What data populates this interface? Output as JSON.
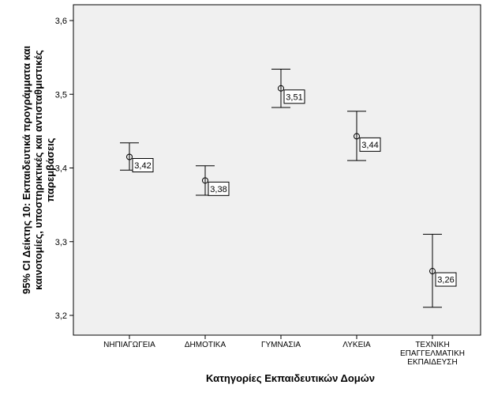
{
  "chart_data": {
    "type": "errorbar",
    "xlabel": "Κατηγορίες Εκπαιδευτικών Δομών",
    "ylabel": [
      "95% CI Δείκτης 10: Εκπαιδευτικά προγράμματα και",
      "καινοτομίες, υποστηρικτικές και αντισταθμιστικές",
      "παρεμβάσεις"
    ],
    "ylim": [
      3.2,
      3.6
    ],
    "yticks": [
      3.2,
      3.3,
      3.4,
      3.5,
      3.6
    ],
    "ytick_labels": [
      "3,2",
      "3,3",
      "3,4",
      "3,5",
      "3,6"
    ],
    "grid": false,
    "categories": [
      {
        "lines": [
          "ΝΗΠΙΑΓΩΓΕΙΑ"
        ],
        "mean": 3.415,
        "lower": 3.397,
        "upper": 3.434,
        "label": "3,42"
      },
      {
        "lines": [
          "ΔΗΜΟΤΙΚΑ"
        ],
        "mean": 3.383,
        "lower": 3.363,
        "upper": 3.403,
        "label": "3,38"
      },
      {
        "lines": [
          "ΓΥΜΝΑΣΙΑ"
        ],
        "mean": 3.508,
        "lower": 3.482,
        "upper": 3.534,
        "label": "3,51"
      },
      {
        "lines": [
          "ΛΥΚΕΙΑ"
        ],
        "mean": 3.443,
        "lower": 3.41,
        "upper": 3.477,
        "label": "3,44"
      },
      {
        "lines": [
          "ΤΕΧΝΙΚΗ",
          "ΕΠΑΓΓΕΛΜΑΤΙΚΗ",
          "ΕΚΠΑΙΔΕΥΣΗ"
        ],
        "mean": 3.26,
        "lower": 3.211,
        "upper": 3.31,
        "label": "3,26"
      }
    ]
  },
  "colors": {
    "plot_background": "#f0f0f0",
    "page_background": "#ffffff",
    "frame": "#000000",
    "marks": "#000000"
  }
}
